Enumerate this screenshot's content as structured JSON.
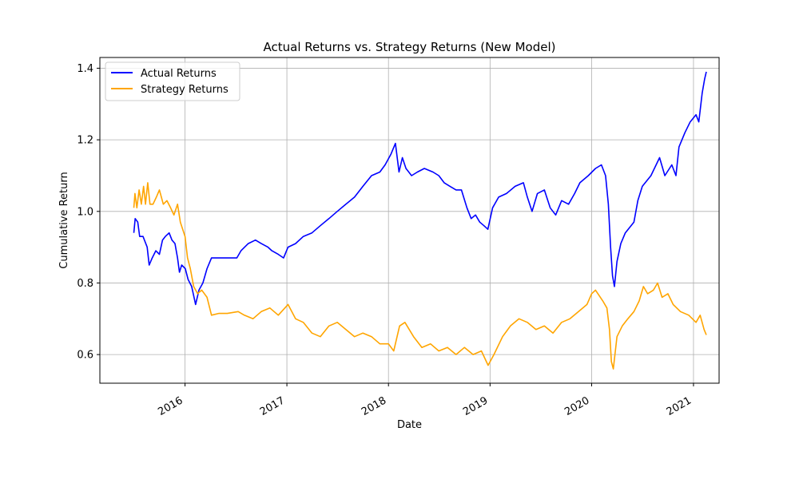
{
  "chart_data": {
    "type": "line",
    "title": "Actual Returns vs. Strategy Returns (New Model)",
    "xlabel": "Date",
    "ylabel": "Cumulative Return",
    "xlim": [
      "2015-03-01",
      "2021-04-03"
    ],
    "ylim": [
      0.52,
      1.43
    ],
    "x_ticks": [
      "2016",
      "2017",
      "2018",
      "2019",
      "2020",
      "2021"
    ],
    "y_ticks": [
      "0.6",
      "0.8",
      "1.0",
      "1.2",
      "1.4"
    ],
    "grid": true,
    "legend": "top-left",
    "series": [
      {
        "name": "Actual Returns",
        "color": "#0000ff",
        "points": [
          [
            "2015-07-01",
            0.94
          ],
          [
            "2015-07-06",
            0.98
          ],
          [
            "2015-07-15",
            0.97
          ],
          [
            "2015-07-22",
            0.93
          ],
          [
            "2015-08-03",
            0.93
          ],
          [
            "2015-08-18",
            0.9
          ],
          [
            "2015-08-25",
            0.85
          ],
          [
            "2015-09-05",
            0.87
          ],
          [
            "2015-09-18",
            0.89
          ],
          [
            "2015-10-01",
            0.88
          ],
          [
            "2015-10-12",
            0.92
          ],
          [
            "2015-10-22",
            0.93
          ],
          [
            "2015-11-05",
            0.94
          ],
          [
            "2015-11-15",
            0.92
          ],
          [
            "2015-11-26",
            0.91
          ],
          [
            "2015-12-05",
            0.87
          ],
          [
            "2015-12-12",
            0.83
          ],
          [
            "2015-12-20",
            0.85
          ],
          [
            "2016-01-02",
            0.84
          ],
          [
            "2016-01-12",
            0.81
          ],
          [
            "2016-01-25",
            0.79
          ],
          [
            "2016-02-08",
            0.74
          ],
          [
            "2016-02-20",
            0.78
          ],
          [
            "2016-03-05",
            0.8
          ],
          [
            "2016-03-20",
            0.84
          ],
          [
            "2016-04-05",
            0.87
          ],
          [
            "2016-04-20",
            0.87
          ],
          [
            "2016-06-01",
            0.87
          ],
          [
            "2016-07-05",
            0.87
          ],
          [
            "2016-07-20",
            0.89
          ],
          [
            "2016-08-15",
            0.91
          ],
          [
            "2016-09-10",
            0.92
          ],
          [
            "2016-10-01",
            0.91
          ],
          [
            "2016-10-25",
            0.9
          ],
          [
            "2016-11-08",
            0.89
          ],
          [
            "2016-12-01",
            0.88
          ],
          [
            "2016-12-20",
            0.87
          ],
          [
            "2017-01-05",
            0.9
          ],
          [
            "2017-02-01",
            0.91
          ],
          [
            "2017-03-01",
            0.93
          ],
          [
            "2017-04-01",
            0.94
          ],
          [
            "2017-05-01",
            0.96
          ],
          [
            "2017-06-01",
            0.98
          ],
          [
            "2017-07-01",
            1.0
          ],
          [
            "2017-08-01",
            1.02
          ],
          [
            "2017-09-01",
            1.04
          ],
          [
            "2017-10-01",
            1.07
          ],
          [
            "2017-11-01",
            1.1
          ],
          [
            "2017-12-01",
            1.11
          ],
          [
            "2017-12-20",
            1.13
          ],
          [
            "2018-01-10",
            1.16
          ],
          [
            "2018-01-26",
            1.19
          ],
          [
            "2018-02-08",
            1.11
          ],
          [
            "2018-02-20",
            1.15
          ],
          [
            "2018-03-05",
            1.12
          ],
          [
            "2018-03-25",
            1.1
          ],
          [
            "2018-04-15",
            1.11
          ],
          [
            "2018-05-10",
            1.12
          ],
          [
            "2018-06-10",
            1.11
          ],
          [
            "2018-07-01",
            1.1
          ],
          [
            "2018-07-20",
            1.08
          ],
          [
            "2018-08-10",
            1.07
          ],
          [
            "2018-09-01",
            1.06
          ],
          [
            "2018-09-20",
            1.06
          ],
          [
            "2018-10-10",
            1.01
          ],
          [
            "2018-10-25",
            0.98
          ],
          [
            "2018-11-10",
            0.99
          ],
          [
            "2018-11-25",
            0.97
          ],
          [
            "2018-12-10",
            0.96
          ],
          [
            "2018-12-24",
            0.95
          ],
          [
            "2019-01-10",
            1.01
          ],
          [
            "2019-02-01",
            1.04
          ],
          [
            "2019-03-01",
            1.05
          ],
          [
            "2019-04-01",
            1.07
          ],
          [
            "2019-05-01",
            1.08
          ],
          [
            "2019-05-15",
            1.04
          ],
          [
            "2019-06-01",
            1.0
          ],
          [
            "2019-06-20",
            1.05
          ],
          [
            "2019-07-15",
            1.06
          ],
          [
            "2019-08-05",
            1.01
          ],
          [
            "2019-08-25",
            0.99
          ],
          [
            "2019-09-15",
            1.03
          ],
          [
            "2019-10-10",
            1.02
          ],
          [
            "2019-11-01",
            1.05
          ],
          [
            "2019-11-20",
            1.08
          ],
          [
            "2019-12-20",
            1.1
          ],
          [
            "2020-01-15",
            1.12
          ],
          [
            "2020-02-05",
            1.13
          ],
          [
            "2020-02-20",
            1.1
          ],
          [
            "2020-03-01",
            1.02
          ],
          [
            "2020-03-09",
            0.9
          ],
          [
            "2020-03-16",
            0.82
          ],
          [
            "2020-03-23",
            0.79
          ],
          [
            "2020-04-01",
            0.86
          ],
          [
            "2020-04-15",
            0.91
          ],
          [
            "2020-05-01",
            0.94
          ],
          [
            "2020-06-01",
            0.97
          ],
          [
            "2020-06-15",
            1.03
          ],
          [
            "2020-07-01",
            1.07
          ],
          [
            "2020-08-01",
            1.1
          ],
          [
            "2020-09-01",
            1.15
          ],
          [
            "2020-09-20",
            1.1
          ],
          [
            "2020-10-15",
            1.13
          ],
          [
            "2020-10-30",
            1.1
          ],
          [
            "2020-11-10",
            1.18
          ],
          [
            "2020-12-01",
            1.22
          ],
          [
            "2020-12-20",
            1.25
          ],
          [
            "2021-01-10",
            1.27
          ],
          [
            "2021-01-20",
            1.25
          ],
          [
            "2021-02-01",
            1.33
          ],
          [
            "2021-02-10",
            1.37
          ],
          [
            "2021-02-16",
            1.39
          ]
        ]
      },
      {
        "name": "Strategy Returns",
        "color": "#ffa500",
        "points": [
          [
            "2015-07-01",
            1.01
          ],
          [
            "2015-07-05",
            1.05
          ],
          [
            "2015-07-12",
            1.01
          ],
          [
            "2015-07-20",
            1.06
          ],
          [
            "2015-07-28",
            1.02
          ],
          [
            "2015-08-05",
            1.07
          ],
          [
            "2015-08-12",
            1.02
          ],
          [
            "2015-08-20",
            1.08
          ],
          [
            "2015-08-28",
            1.02
          ],
          [
            "2015-09-08",
            1.02
          ],
          [
            "2015-09-20",
            1.04
          ],
          [
            "2015-10-01",
            1.06
          ],
          [
            "2015-10-15",
            1.02
          ],
          [
            "2015-10-28",
            1.03
          ],
          [
            "2015-11-10",
            1.01
          ],
          [
            "2015-11-22",
            0.99
          ],
          [
            "2015-12-05",
            1.02
          ],
          [
            "2015-12-15",
            0.97
          ],
          [
            "2016-01-01",
            0.93
          ],
          [
            "2016-01-10",
            0.87
          ],
          [
            "2016-01-20",
            0.84
          ],
          [
            "2016-02-01",
            0.79
          ],
          [
            "2016-02-15",
            0.77
          ],
          [
            "2016-03-01",
            0.78
          ],
          [
            "2016-03-20",
            0.76
          ],
          [
            "2016-04-05",
            0.71
          ],
          [
            "2016-05-01",
            0.715
          ],
          [
            "2016-06-01",
            0.715
          ],
          [
            "2016-07-10",
            0.72
          ],
          [
            "2016-08-01",
            0.71
          ],
          [
            "2016-09-01",
            0.7
          ],
          [
            "2016-10-01",
            0.72
          ],
          [
            "2016-11-01",
            0.73
          ],
          [
            "2016-12-01",
            0.71
          ],
          [
            "2017-01-05",
            0.74
          ],
          [
            "2017-02-01",
            0.7
          ],
          [
            "2017-03-01",
            0.69
          ],
          [
            "2017-04-01",
            0.66
          ],
          [
            "2017-05-01",
            0.65
          ],
          [
            "2017-06-01",
            0.68
          ],
          [
            "2017-07-01",
            0.69
          ],
          [
            "2017-08-01",
            0.67
          ],
          [
            "2017-09-01",
            0.65
          ],
          [
            "2017-10-01",
            0.66
          ],
          [
            "2017-11-01",
            0.65
          ],
          [
            "2017-12-01",
            0.63
          ],
          [
            "2018-01-01",
            0.63
          ],
          [
            "2018-01-20",
            0.61
          ],
          [
            "2018-02-10",
            0.68
          ],
          [
            "2018-03-01",
            0.69
          ],
          [
            "2018-04-01",
            0.65
          ],
          [
            "2018-05-01",
            0.62
          ],
          [
            "2018-06-01",
            0.63
          ],
          [
            "2018-07-01",
            0.61
          ],
          [
            "2018-08-01",
            0.62
          ],
          [
            "2018-09-01",
            0.6
          ],
          [
            "2018-10-01",
            0.62
          ],
          [
            "2018-11-01",
            0.6
          ],
          [
            "2018-12-01",
            0.61
          ],
          [
            "2018-12-25",
            0.57
          ],
          [
            "2019-01-15",
            0.6
          ],
          [
            "2019-02-15",
            0.65
          ],
          [
            "2019-03-15",
            0.68
          ],
          [
            "2019-04-15",
            0.7
          ],
          [
            "2019-05-15",
            0.69
          ],
          [
            "2019-06-15",
            0.67
          ],
          [
            "2019-07-15",
            0.68
          ],
          [
            "2019-08-15",
            0.66
          ],
          [
            "2019-09-15",
            0.69
          ],
          [
            "2019-10-15",
            0.7
          ],
          [
            "2019-11-15",
            0.72
          ],
          [
            "2019-12-15",
            0.74
          ],
          [
            "2020-01-01",
            0.77
          ],
          [
            "2020-01-15",
            0.78
          ],
          [
            "2020-02-10",
            0.75
          ],
          [
            "2020-02-25",
            0.73
          ],
          [
            "2020-03-05",
            0.67
          ],
          [
            "2020-03-12",
            0.58
          ],
          [
            "2020-03-19",
            0.56
          ],
          [
            "2020-04-01",
            0.65
          ],
          [
            "2020-04-20",
            0.68
          ],
          [
            "2020-05-10",
            0.7
          ],
          [
            "2020-06-01",
            0.72
          ],
          [
            "2020-06-20",
            0.75
          ],
          [
            "2020-07-05",
            0.79
          ],
          [
            "2020-07-20",
            0.77
          ],
          [
            "2020-08-10",
            0.78
          ],
          [
            "2020-08-25",
            0.8
          ],
          [
            "2020-09-10",
            0.76
          ],
          [
            "2020-10-01",
            0.77
          ],
          [
            "2020-10-20",
            0.74
          ],
          [
            "2020-11-15",
            0.72
          ],
          [
            "2020-12-15",
            0.71
          ],
          [
            "2021-01-10",
            0.69
          ],
          [
            "2021-01-25",
            0.71
          ],
          [
            "2021-02-08",
            0.67
          ],
          [
            "2021-02-16",
            0.655
          ]
        ]
      }
    ]
  }
}
